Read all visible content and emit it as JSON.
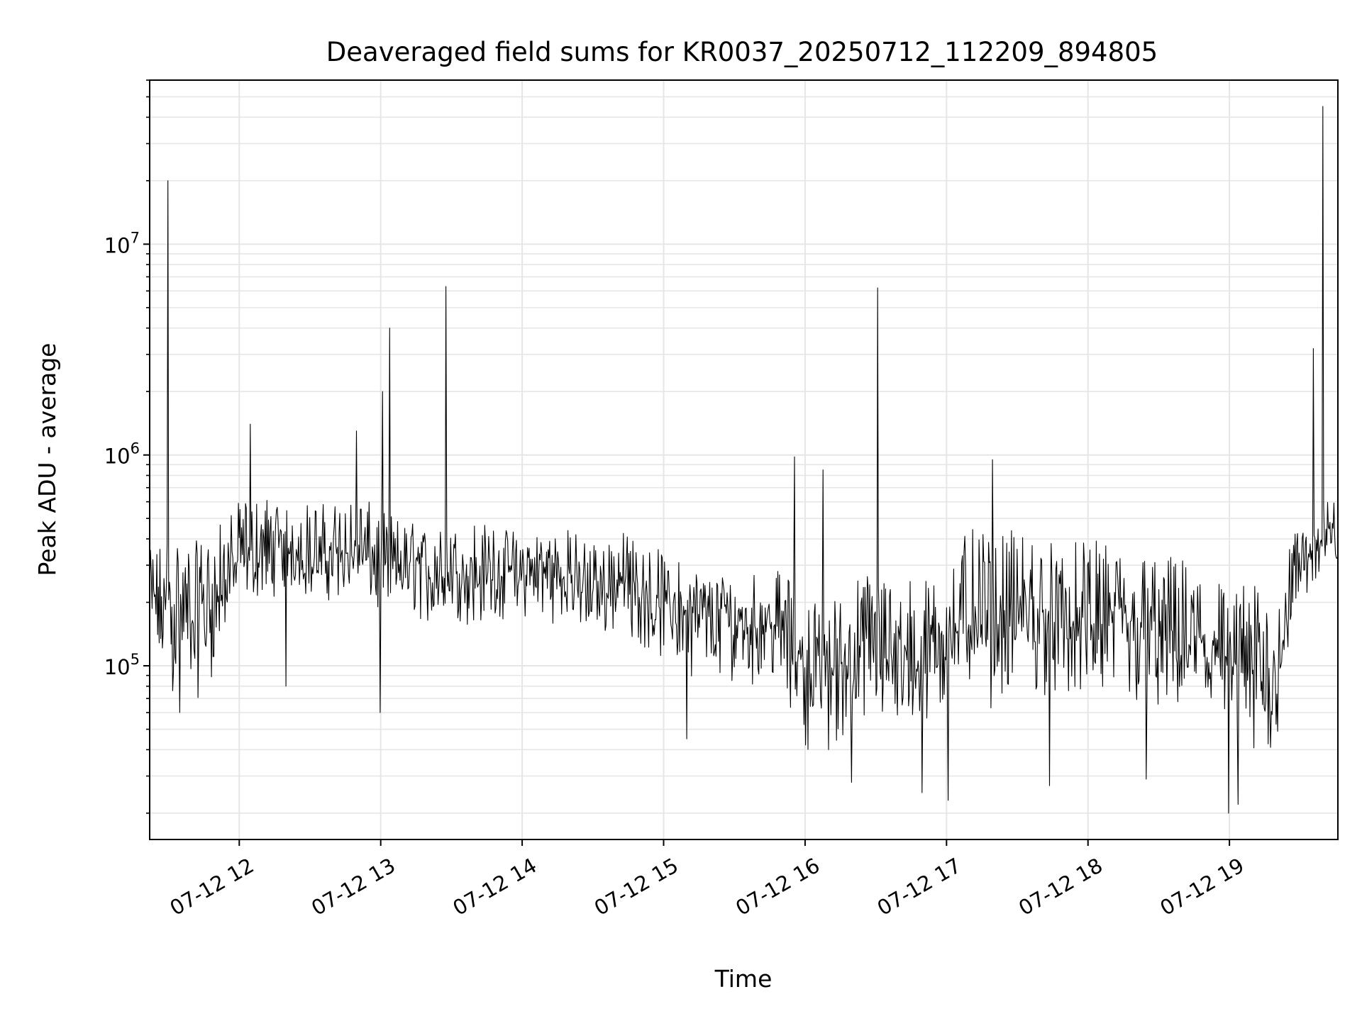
{
  "chart_data": {
    "type": "line",
    "title": "Deaveraged field sums for KR0037_20250712_112209_894805",
    "xlabel": "Time",
    "ylabel": "Peak ADU - average",
    "x_scale": "time",
    "y_scale": "log",
    "xlim": [
      "2025-07-12 11:22",
      "2025-07-12 19:46"
    ],
    "ylim": [
      15000,
      60000000
    ],
    "grid": true,
    "legend": "none",
    "line_color": "#000000",
    "x_ticks": [
      {
        "value": "2025-07-12 12:00",
        "label": "07-12 12"
      },
      {
        "value": "2025-07-12 13:00",
        "label": "07-12 13"
      },
      {
        "value": "2025-07-12 14:00",
        "label": "07-12 14"
      },
      {
        "value": "2025-07-12 15:00",
        "label": "07-12 15"
      },
      {
        "value": "2025-07-12 16:00",
        "label": "07-12 16"
      },
      {
        "value": "2025-07-12 17:00",
        "label": "07-12 17"
      },
      {
        "value": "2025-07-12 18:00",
        "label": "07-12 18"
      },
      {
        "value": "2025-07-12 19:00",
        "label": "07-12 19"
      }
    ],
    "y_ticks": [
      {
        "value": 100000,
        "base": "10",
        "exp": "5"
      },
      {
        "value": 1000000,
        "base": "10",
        "exp": "6"
      },
      {
        "value": 10000000,
        "base": "10",
        "exp": "7"
      }
    ],
    "series": [
      {
        "values_note_free": true,
        "x": [
          "2025-07-12 11:22",
          "2025-07-12 11:30",
          "2025-07-12 11:40",
          "2025-07-12 11:50",
          "2025-07-12 12:00",
          "2025-07-12 12:10",
          "2025-07-12 12:20",
          "2025-07-12 12:30",
          "2025-07-12 12:40",
          "2025-07-12 12:50",
          "2025-07-12 13:00",
          "2025-07-12 13:10",
          "2025-07-12 13:20",
          "2025-07-12 13:30",
          "2025-07-12 13:40",
          "2025-07-12 13:50",
          "2025-07-12 14:00",
          "2025-07-12 14:10",
          "2025-07-12 14:20",
          "2025-07-12 14:30",
          "2025-07-12 14:40",
          "2025-07-12 14:50",
          "2025-07-12 15:00",
          "2025-07-12 15:10",
          "2025-07-12 15:20",
          "2025-07-12 15:30",
          "2025-07-12 15:40",
          "2025-07-12 15:50",
          "2025-07-12 16:00",
          "2025-07-12 16:10",
          "2025-07-12 16:20",
          "2025-07-12 16:30",
          "2025-07-12 16:40",
          "2025-07-12 16:50",
          "2025-07-12 17:00",
          "2025-07-12 17:10",
          "2025-07-12 17:20",
          "2025-07-12 17:30",
          "2025-07-12 17:40",
          "2025-07-12 17:50",
          "2025-07-12 18:00",
          "2025-07-12 18:10",
          "2025-07-12 18:20",
          "2025-07-12 18:30",
          "2025-07-12 18:40",
          "2025-07-12 18:50",
          "2025-07-12 19:00",
          "2025-07-12 19:10",
          "2025-07-12 19:20",
          "2025-07-12 19:30",
          "2025-07-12 19:40",
          "2025-07-12 19:46"
        ],
        "y": [
          200000,
          200000,
          180000,
          200000,
          330000,
          330000,
          360000,
          330000,
          330000,
          350000,
          300000,
          300000,
          280000,
          270000,
          280000,
          280000,
          270000,
          280000,
          270000,
          230000,
          250000,
          230000,
          200000,
          180000,
          170000,
          160000,
          170000,
          150000,
          100000,
          95000,
          110000,
          120000,
          110000,
          100000,
          140000,
          180000,
          160000,
          170000,
          180000,
          150000,
          160000,
          160000,
          150000,
          140000,
          140000,
          130000,
          100000,
          90000,
          90000,
          300000,
          400000,
          420000
        ],
        "low": [
          80000,
          70000,
          60000,
          90000,
          200000,
          200000,
          220000,
          200000,
          200000,
          220000,
          150000,
          170000,
          150000,
          140000,
          150000,
          150000,
          160000,
          160000,
          150000,
          120000,
          140000,
          120000,
          100000,
          90000,
          80000,
          80000,
          80000,
          70000,
          40000,
          35000,
          45000,
          50000,
          45000,
          40000,
          60000,
          70000,
          60000,
          65000,
          70000,
          60000,
          60000,
          60000,
          55000,
          50000,
          50000,
          45000,
          40000,
          30000,
          35000,
          180000,
          250000,
          280000
        ],
        "high": [
          350000,
          450000,
          380000,
          450000,
          600000,
          650000,
          650000,
          600000,
          600000,
          650000,
          550000,
          500000,
          450000,
          450000,
          500000,
          450000,
          450000,
          450000,
          450000,
          400000,
          450000,
          400000,
          350000,
          300000,
          280000,
          280000,
          300000,
          280000,
          220000,
          200000,
          260000,
          300000,
          280000,
          260000,
          300000,
          450000,
          400000,
          450000,
          420000,
          380000,
          400000,
          380000,
          350000,
          350000,
          330000,
          300000,
          250000,
          250000,
          220000,
          480000,
          600000,
          620000
        ],
        "spikes": [
          {
            "x": "2025-07-12 11:30",
            "y": 20000000
          },
          {
            "x": "2025-07-12 12:05",
            "y": 1400000
          },
          {
            "x": "2025-07-12 12:50",
            "y": 1300000
          },
          {
            "x": "2025-07-12 13:01",
            "y": 2000000
          },
          {
            "x": "2025-07-12 13:04",
            "y": 4000000
          },
          {
            "x": "2025-07-12 13:28",
            "y": 6300000
          },
          {
            "x": "2025-07-12 15:56",
            "y": 980000
          },
          {
            "x": "2025-07-12 16:08",
            "y": 850000
          },
          {
            "x": "2025-07-12 16:31",
            "y": 6200000
          },
          {
            "x": "2025-07-12 17:20",
            "y": 950000
          },
          {
            "x": "2025-07-12 19:36",
            "y": 3200000
          },
          {
            "x": "2025-07-12 19:40",
            "y": 45000000
          }
        ],
        "dips": [
          {
            "x": "2025-07-12 11:35",
            "y": 60000
          },
          {
            "x": "2025-07-12 12:20",
            "y": 80000
          },
          {
            "x": "2025-07-12 13:00",
            "y": 60000
          },
          {
            "x": "2025-07-12 15:10",
            "y": 45000
          },
          {
            "x": "2025-07-12 16:20",
            "y": 28000
          },
          {
            "x": "2025-07-12 16:50",
            "y": 25000
          },
          {
            "x": "2025-07-12 17:01",
            "y": 23000
          },
          {
            "x": "2025-07-12 17:44",
            "y": 27000
          },
          {
            "x": "2025-07-12 18:25",
            "y": 29000
          },
          {
            "x": "2025-07-12 19:00",
            "y": 20000
          },
          {
            "x": "2025-07-12 19:04",
            "y": 22000
          }
        ]
      }
    ]
  }
}
